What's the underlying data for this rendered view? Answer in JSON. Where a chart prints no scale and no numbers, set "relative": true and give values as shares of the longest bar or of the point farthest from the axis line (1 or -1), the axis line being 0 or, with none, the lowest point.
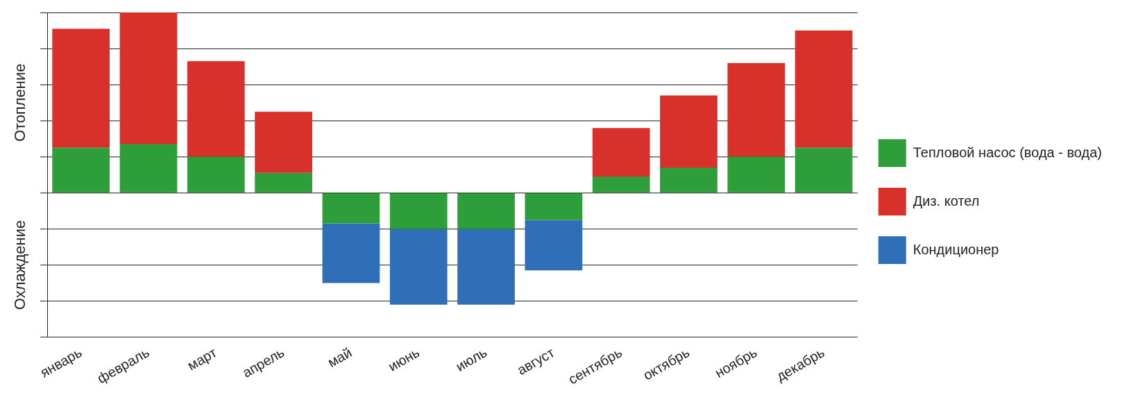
{
  "chart_data": {
    "type": "bar",
    "stacked": true,
    "relative": true,
    "ylabel": "Отопление",
    "annotations": [
      "Охлаждение"
    ],
    "categories": [
      "январь",
      "февраль",
      "март",
      "апрель",
      "май",
      "июнь",
      "июль",
      "август",
      "сентябрь",
      "октябрь",
      "ноябрь",
      "декабрь"
    ],
    "series": [
      {
        "name": "Тепловой насос (вода - вода)",
        "color": "#2e9e3a",
        "values": [
          0.25,
          0.27,
          0.2,
          0.11,
          -0.17,
          -0.2,
          -0.2,
          -0.15,
          0.09,
          0.14,
          0.2,
          0.25
        ]
      },
      {
        "name": "Диз. котел",
        "color": "#d8312b",
        "values": [
          0.66,
          0.73,
          0.53,
          0.34,
          null,
          null,
          null,
          null,
          0.27,
          0.4,
          0.52,
          0.65
        ]
      },
      {
        "name": "Кондиционер",
        "color": "#2f6fb8",
        "values": [
          null,
          null,
          null,
          null,
          -0.33,
          -0.42,
          -0.42,
          -0.28,
          null,
          null,
          null,
          null
        ]
      }
    ],
    "grid": "y",
    "legend": "right"
  }
}
